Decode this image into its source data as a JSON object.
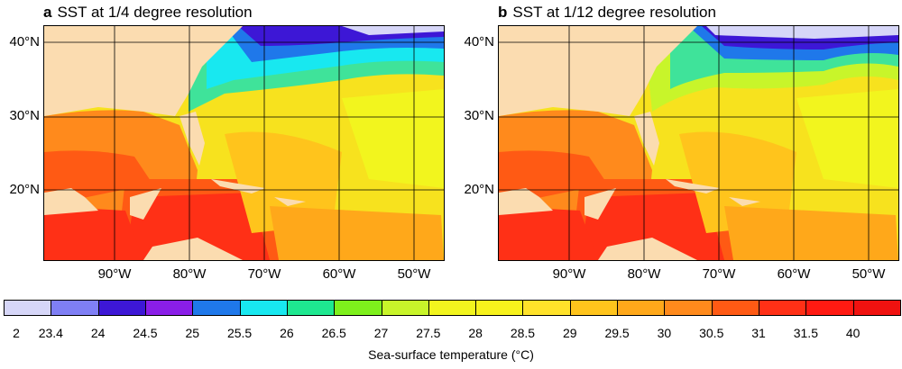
{
  "panels": [
    {
      "letter": "a",
      "title": "SST at 1/4 degree resolution"
    },
    {
      "letter": "b",
      "title": "SST at 1/12 degree resolution"
    }
  ],
  "lat_labels": [
    "40°N",
    "30°N",
    "20°N"
  ],
  "lon_labels": [
    "90°W",
    "80°W",
    "70°W",
    "60°W",
    "50°W"
  ],
  "colorbar": {
    "title": "Sea-surface temperature (°C)",
    "labels": [
      "2",
      "23.4",
      "24",
      "24.5",
      "25",
      "25.5",
      "26",
      "26.5",
      "27",
      "27.5",
      "28",
      "28.5",
      "29",
      "29.5",
      "30",
      "30.5",
      "31",
      "31.5",
      "40"
    ],
    "colors": [
      "#d6d6f8",
      "#7f7ff5",
      "#3d17d6",
      "#8a1ee8",
      "#1f78ea",
      "#18e8f0",
      "#1ee890",
      "#7ef01c",
      "#c8f52a",
      "#f2f51e",
      "#f7f21c",
      "#ffe22a",
      "#ffc41c",
      "#ffa81a",
      "#ff8a1c",
      "#ff5a14",
      "#ff3016",
      "#ff1a12",
      "#f01210"
    ]
  },
  "colors": {
    "land": "#fbdcb0",
    "ocean_base": "#f7e21e",
    "grid": "#000000"
  }
}
